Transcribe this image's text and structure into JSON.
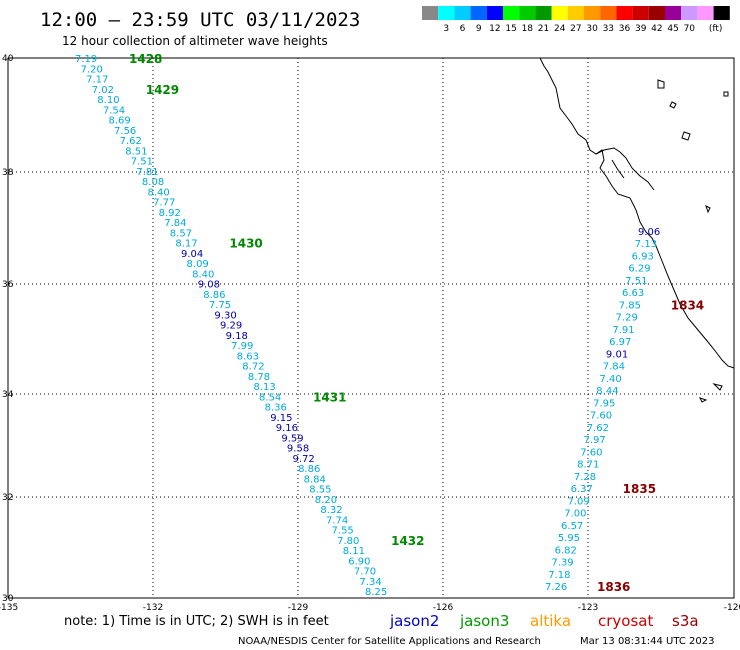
{
  "header": {
    "title": "12:00 – 23:59 UTC 03/11/2023",
    "subtitle": "12 hour collection of altimeter wave heights"
  },
  "legend": {
    "unit": "(ft)",
    "colors": [
      "#888888",
      "#00ffff",
      "#00ccff",
      "#0066ff",
      "#0000ff",
      "#00ff00",
      "#00cc00",
      "#009900",
      "#ffff00",
      "#ffcc00",
      "#ff9900",
      "#ff6600",
      "#ff0000",
      "#cc0000",
      "#990000",
      "#990099",
      "#cc99ff",
      "#ff99ff",
      "#000000"
    ],
    "labels": [
      "3",
      "6",
      "9",
      "12",
      "15",
      "18",
      "21",
      "24",
      "27",
      "30",
      "33",
      "36",
      "39",
      "42",
      "45",
      "70"
    ]
  },
  "axes": {
    "lon_labels": [
      "-135",
      "-132",
      "-129",
      "-126",
      "-123",
      "-120"
    ],
    "lat_labels": [
      "40",
      "38",
      "36",
      "34",
      "32",
      "30"
    ]
  },
  "tracks": [
    {
      "name": "west-track",
      "values": [
        "7.19",
        "7.20",
        "7.17",
        "7.02",
        "8.10",
        "7.54",
        "8.69",
        "7.56",
        "7.62",
        "8.51",
        "7.51",
        "7.81",
        "8.08",
        "8.40",
        "7.77",
        "8.92",
        "7.84",
        "8.57",
        "8.17",
        "9.04",
        "8.09",
        "8.40",
        "9.08",
        "8.86",
        "7.75",
        "9.30",
        "9.29",
        "9.18",
        "7.99",
        "8.63",
        "8.72",
        "8.78",
        "8.13",
        "8.54",
        "8.36",
        "9.15",
        "9.16",
        "9.59",
        "9.58",
        "9.72",
        "8.86",
        "8.84",
        "8.55",
        "8.20",
        "8.32",
        "7.74",
        "7.55",
        "7.80",
        "8.11",
        "6.90",
        "7.70",
        "7.34",
        "8.25"
      ],
      "dark": [
        "9.04",
        "9.08",
        "9.30",
        "9.29",
        "9.18",
        "9.15",
        "9.16",
        "9.59",
        "9.58",
        "9.72"
      ],
      "times": [
        {
          "label": "1428",
          "index": 0
        },
        {
          "label": "1429",
          "index": 3
        },
        {
          "label": "1430",
          "index": 18
        },
        {
          "label": "1431",
          "index": 33
        },
        {
          "label": "1432",
          "index": 47
        }
      ]
    },
    {
      "name": "east-track",
      "values": [
        "9.06",
        "7.13",
        "6.93",
        "6.29",
        "7.51",
        "6.63",
        "7.85",
        "7.29",
        "7.91",
        "6.97",
        "9.01",
        "7.84",
        "7.40",
        "8.44",
        "7.95",
        "7.60",
        "7.62",
        "7.97",
        "7.60",
        "8.71",
        "7.28",
        "6.37",
        "7.09",
        "7.00",
        "6.57",
        "5.95",
        "6.82",
        "7.39",
        "7.18",
        "7.26"
      ],
      "dark": [
        "9.06",
        "9.01"
      ],
      "times": [
        {
          "label": "1834",
          "index": 6
        },
        {
          "label": "1835",
          "index": 21
        },
        {
          "label": "1836",
          "index": 29
        }
      ]
    }
  ],
  "footer": {
    "note": "note:  1) Time is in UTC;  2) SWH is in feet",
    "satellites": [
      {
        "name": "jason2",
        "color": "#0000cc"
      },
      {
        "name": "jason3",
        "color": "#009900"
      },
      {
        "name": "altika",
        "color": "#ff9900"
      },
      {
        "name": "cryosat",
        "color": "#cc0000"
      },
      {
        "name": "s3a",
        "color": "#990000"
      }
    ],
    "credit": "NOAA/NESDIS Center for Satellite Applications and Research",
    "timestamp": "Mar 13 08:31:44 UTC 2023"
  },
  "colors": {
    "light_value": "#00aadd",
    "dark_value": "#0000aa",
    "west_time": "#008800",
    "east_time": "#880000"
  }
}
